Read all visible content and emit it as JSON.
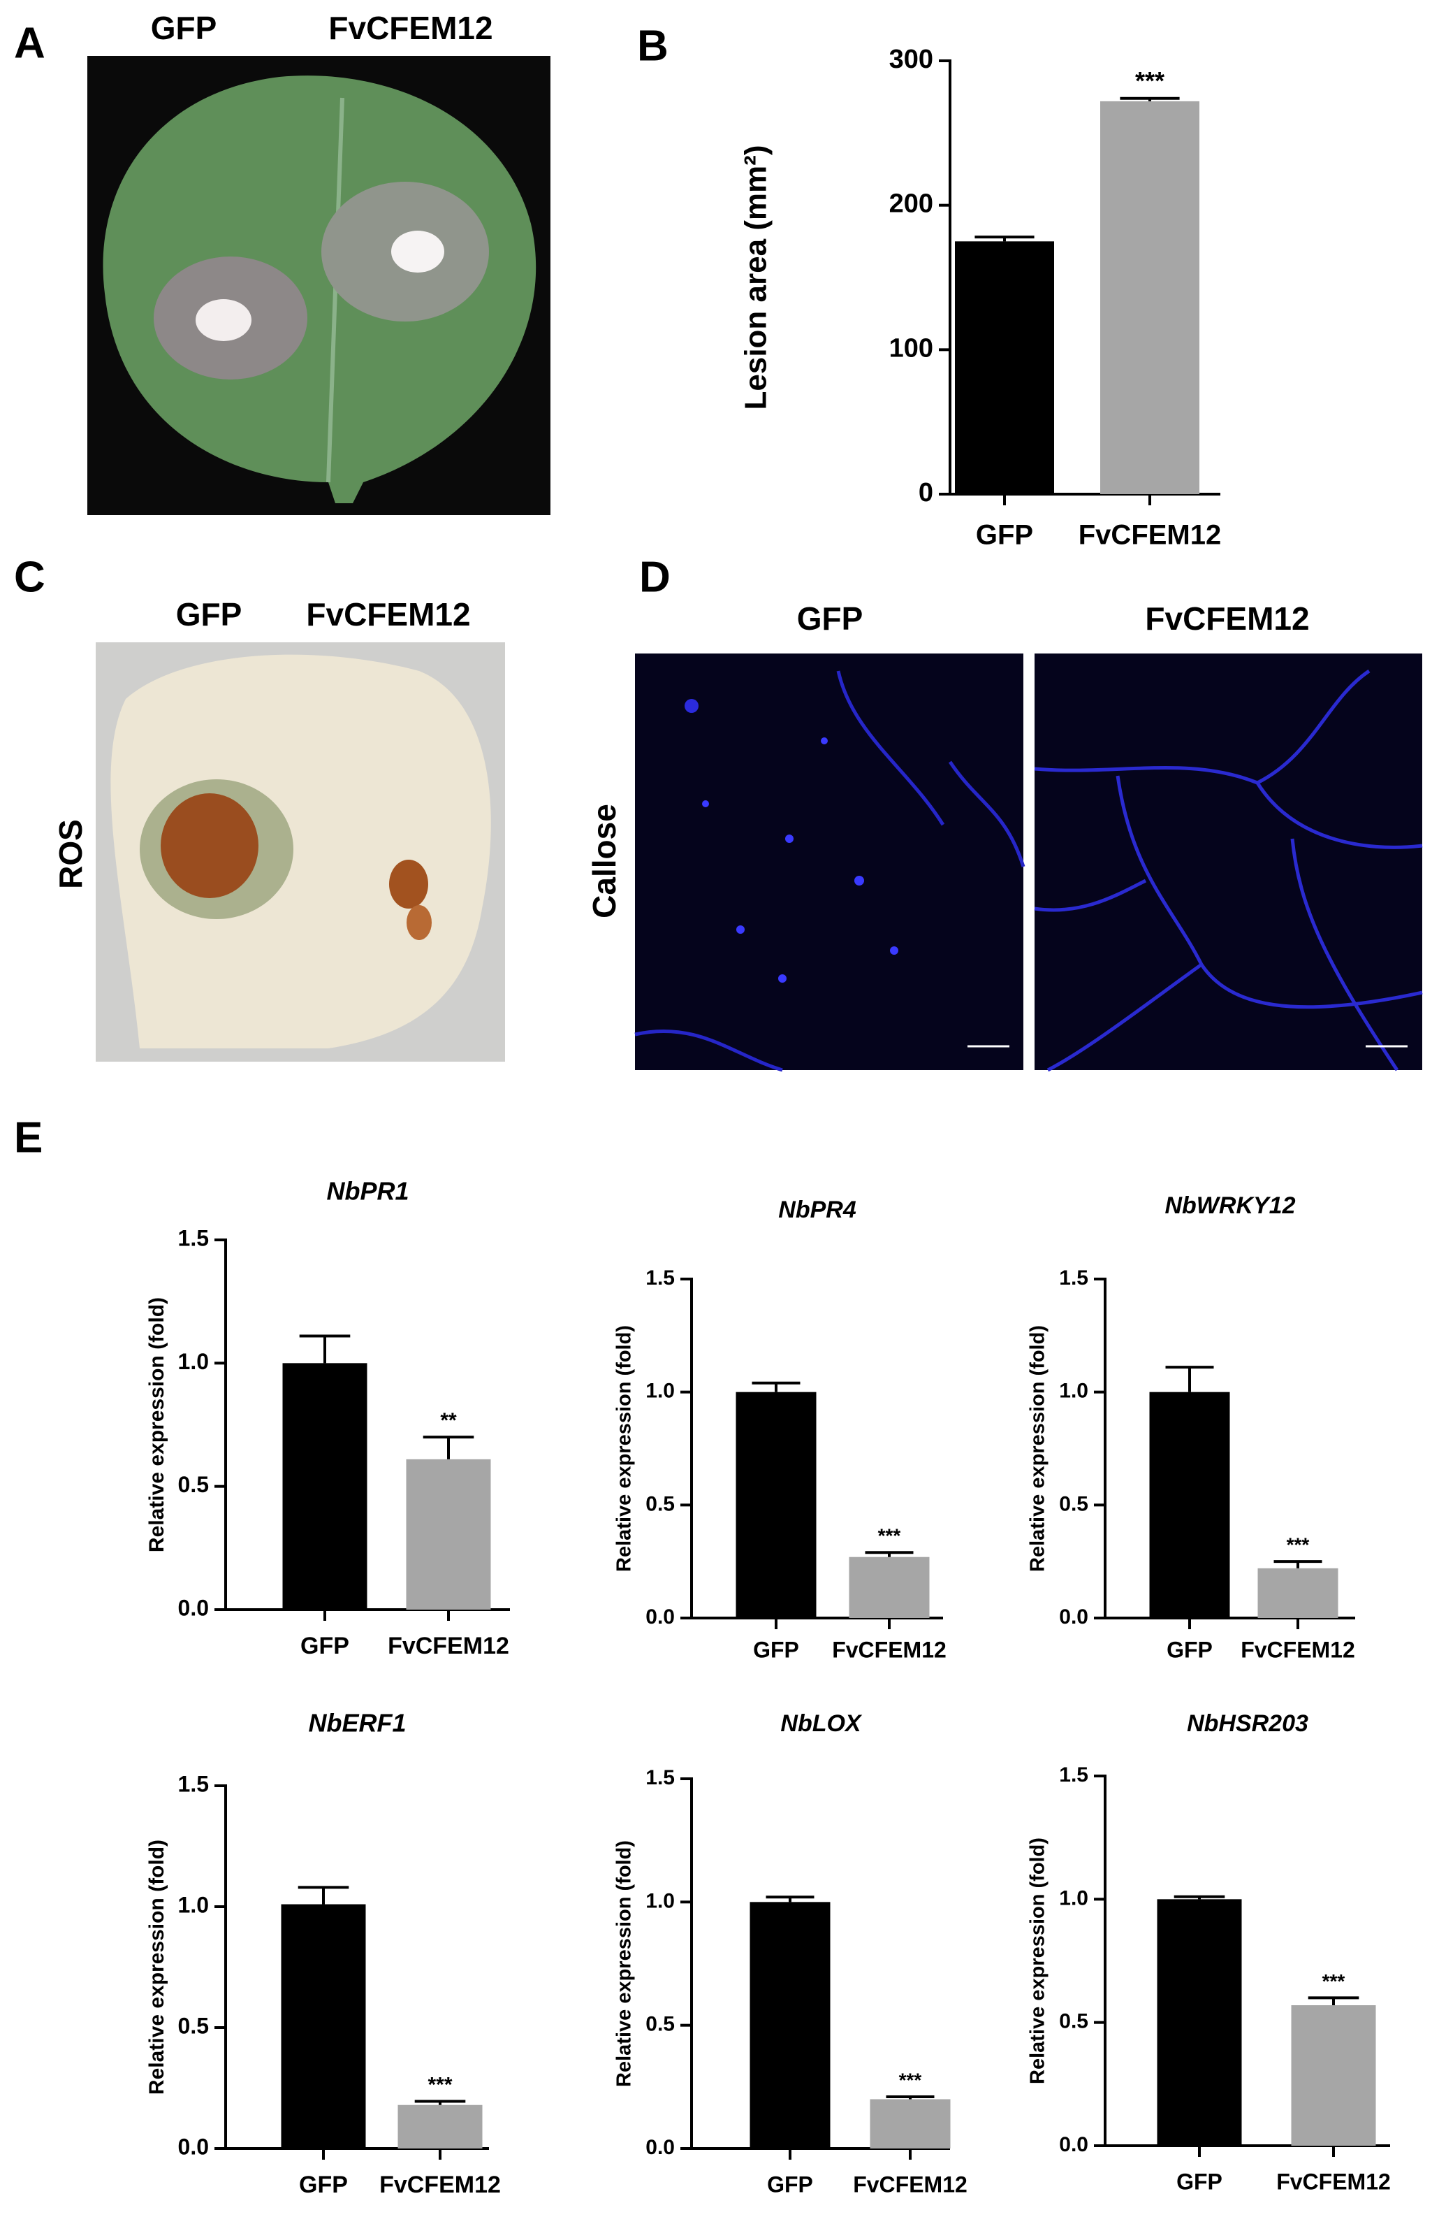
{
  "panel_letters": [
    "A",
    "B",
    "C",
    "D",
    "E"
  ],
  "leaf_infection": {
    "labels": [
      "GFP",
      "FvCFEM12"
    ]
  },
  "ros_staining": {
    "row_label": "ROS",
    "labels": [
      "GFP",
      "FvCFEM12"
    ]
  },
  "callose_staining": {
    "row_label": "Callose",
    "labels": [
      "GFP",
      "FvCFEM12"
    ]
  },
  "chart_data": [
    {
      "type": "bar",
      "y_label": "Lesion area (mm²)",
      "categories": [
        "GFP",
        "FvCFEM12"
      ],
      "values": [
        175,
        272
      ],
      "errors": [
        3,
        2
      ],
      "colors": [
        "#000000",
        "#a6a6a6"
      ],
      "annotation": "***",
      "ylim": [
        0,
        300
      ],
      "yticks": [
        0,
        100,
        200,
        300
      ]
    },
    {
      "type": "bar",
      "title": "NbPR1",
      "y_label": "Relative expression (fold)",
      "categories": [
        "GFP",
        "FvCFEM12"
      ],
      "values": [
        1.0,
        0.61
      ],
      "errors": [
        0.11,
        0.09
      ],
      "colors": [
        "#000000",
        "#a6a6a6"
      ],
      "annotation": "**",
      "ylim": [
        0,
        1.5
      ],
      "yticks": [
        {
          "value": 0,
          "label": "0.0"
        },
        0.5,
        {
          "value": 1,
          "label": "1.0"
        },
        1.5
      ]
    },
    {
      "type": "bar",
      "title": "NbPR4",
      "y_label": "Relative expression (fold)",
      "categories": [
        "GFP",
        "FvCFEM12"
      ],
      "values": [
        1.0,
        0.27
      ],
      "errors": [
        0.04,
        0.02
      ],
      "colors": [
        "#000000",
        "#a6a6a6"
      ],
      "annotation": "***",
      "ylim": [
        0,
        1.5
      ],
      "yticks": [
        {
          "value": 0,
          "label": "0.0"
        },
        0.5,
        {
          "value": 1,
          "label": "1.0"
        },
        1.5
      ]
    },
    {
      "type": "bar",
      "title": "NbWRKY12",
      "y_label": "Relative expression (fold)",
      "categories": [
        "GFP",
        "FvCFEM12"
      ],
      "values": [
        1.0,
        0.22
      ],
      "errors": [
        0.11,
        0.03
      ],
      "colors": [
        "#000000",
        "#a6a6a6"
      ],
      "annotation": "***",
      "ylim": [
        0,
        1.5
      ],
      "yticks": [
        {
          "value": 0,
          "label": "0.0"
        },
        0.5,
        {
          "value": 1,
          "label": "1.0"
        },
        1.5
      ]
    },
    {
      "type": "bar",
      "title": "NbERF1",
      "y_label": "Relative expression (fold)",
      "categories": [
        "GFP",
        "FvCFEM12"
      ],
      "values": [
        1.01,
        0.18
      ],
      "errors": [
        0.07,
        0.015
      ],
      "colors": [
        "#000000",
        "#a6a6a6"
      ],
      "annotation": "***",
      "ylim": [
        0,
        1.5
      ],
      "yticks": [
        {
          "value": 0,
          "label": "0.0"
        },
        0.5,
        {
          "value": 1,
          "label": "1.0"
        },
        1.5
      ]
    },
    {
      "type": "bar",
      "title": "NbLOX",
      "y_label": "Relative expression (fold)",
      "categories": [
        "GFP",
        "FvCFEM12"
      ],
      "values": [
        1.0,
        0.2
      ],
      "errors": [
        0.02,
        0.01
      ],
      "colors": [
        "#000000",
        "#a6a6a6"
      ],
      "annotation": "***",
      "ylim": [
        0,
        1.5
      ],
      "yticks": [
        {
          "value": 0,
          "label": "0.0"
        },
        0.5,
        {
          "value": 1,
          "label": "1.0"
        },
        1.5
      ]
    },
    {
      "type": "bar",
      "title": "NbHSR203",
      "y_label": "Relative expression (fold)",
      "categories": [
        "GFP",
        "FvCFEM12"
      ],
      "values": [
        1.0,
        0.57
      ],
      "errors": [
        0.01,
        0.03
      ],
      "colors": [
        "#000000",
        "#a6a6a6"
      ],
      "annotation": "***",
      "ylim": [
        0,
        1.5
      ],
      "yticks": [
        {
          "value": 0,
          "label": "0.0"
        },
        0.5,
        {
          "value": 1,
          "label": "1.0"
        },
        1.5
      ]
    }
  ]
}
